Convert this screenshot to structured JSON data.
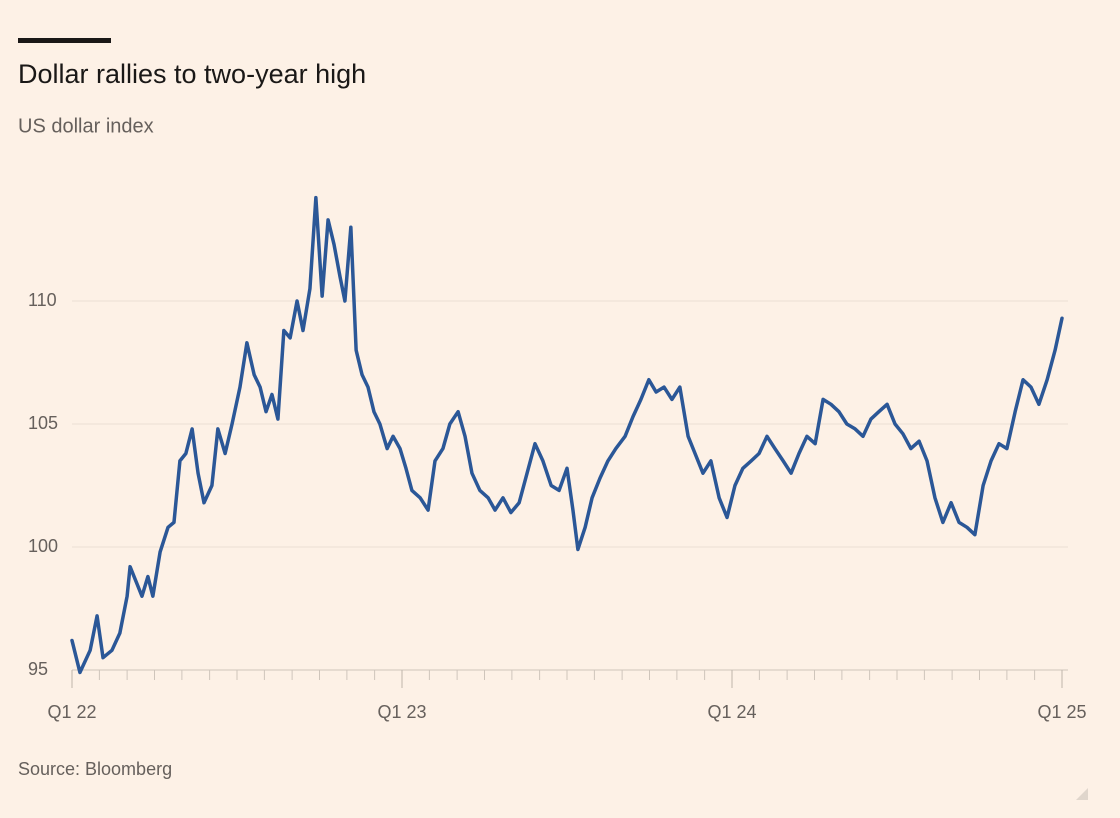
{
  "chart_data": {
    "type": "line",
    "title": "Dollar rallies to two-year high",
    "subtitle": "US dollar index",
    "source": "Source: Bloomberg",
    "xlim": [
      2022,
      2025
    ],
    "xticks": [
      {
        "value": 2022,
        "label": "Q1 22"
      },
      {
        "value": 2023,
        "label": "Q1 23"
      },
      {
        "value": 2024,
        "label": "Q1 24"
      },
      {
        "value": 2025,
        "label": "Q1 25"
      }
    ],
    "xminor_ticks": [
      2022.083,
      2022.167,
      2022.25,
      2022.333,
      2022.417,
      2022.5,
      2022.583,
      2022.667,
      2022.75,
      2022.833,
      2022.917,
      2023.083,
      2023.167,
      2023.25,
      2023.333,
      2023.417,
      2023.5,
      2023.583,
      2023.667,
      2023.75,
      2023.833,
      2023.917,
      2024.083,
      2024.167,
      2024.25,
      2024.333,
      2024.417,
      2024.5,
      2024.583,
      2024.667,
      2024.75,
      2024.833,
      2024.917
    ],
    "ylim": [
      95,
      115
    ],
    "yticks": [
      95,
      100,
      105,
      110
    ],
    "grid": true,
    "x": [
      2022.0,
      2022.024,
      2022.055,
      2022.076,
      2022.094,
      2022.121,
      2022.145,
      2022.167,
      2022.176,
      2022.197,
      2022.212,
      2022.23,
      2022.245,
      2022.267,
      2022.291,
      2022.309,
      2022.327,
      2022.345,
      2022.364,
      2022.382,
      2022.4,
      2022.424,
      2022.442,
      2022.464,
      2022.485,
      2022.509,
      2022.53,
      2022.552,
      2022.57,
      2022.588,
      2022.606,
      2022.624,
      2022.642,
      2022.661,
      2022.682,
      2022.7,
      2022.721,
      2022.739,
      2022.758,
      2022.776,
      2022.794,
      2022.812,
      2022.827,
      2022.845,
      2022.861,
      2022.879,
      2022.897,
      2022.915,
      2022.933,
      2022.955,
      2022.973,
      2022.994,
      2023.012,
      2023.03,
      2023.055,
      2023.079,
      2023.1,
      2023.124,
      2023.145,
      2023.17,
      2023.191,
      2023.212,
      2023.236,
      2023.261,
      2023.282,
      2023.306,
      2023.33,
      2023.355,
      2023.379,
      2023.403,
      2023.427,
      2023.452,
      2023.476,
      2023.5,
      2023.518,
      2023.533,
      2023.555,
      2023.576,
      2023.6,
      2023.624,
      2023.648,
      2023.676,
      2023.7,
      2023.724,
      2023.748,
      2023.77,
      2023.794,
      2023.818,
      2023.842,
      2023.867,
      2023.888,
      2023.912,
      2023.936,
      2023.961,
      2023.985,
      2024.009,
      2024.033,
      2024.058,
      2024.082,
      2024.106,
      2024.13,
      2024.155,
      2024.179,
      2024.203,
      2024.227,
      2024.252,
      2024.276,
      2024.3,
      2024.324,
      2024.348,
      2024.373,
      2024.397,
      2024.421,
      2024.445,
      2024.47,
      2024.494,
      2024.518,
      2024.542,
      2024.567,
      2024.591,
      2024.615,
      2024.639,
      2024.664,
      2024.688,
      2024.712,
      2024.736,
      2024.761,
      2024.785,
      2024.809,
      2024.833,
      2024.858,
      2024.882,
      2024.906,
      2024.93,
      2024.955,
      2024.979,
      2025.0
    ],
    "series": [
      {
        "name": "US dollar index",
        "color": "#2b5797",
        "values": [
          96.2,
          94.9,
          95.8,
          97.2,
          95.5,
          95.8,
          96.5,
          98.0,
          99.2,
          98.5,
          98.0,
          98.8,
          98.0,
          99.8,
          100.8,
          101.0,
          103.5,
          103.8,
          104.8,
          103.0,
          101.8,
          102.5,
          104.8,
          103.8,
          105.0,
          106.5,
          108.3,
          107.0,
          106.5,
          105.5,
          106.2,
          105.2,
          108.8,
          108.5,
          110.0,
          108.8,
          110.5,
          114.2,
          110.2,
          113.3,
          112.3,
          111.0,
          110.0,
          113.0,
          108.0,
          107.0,
          106.5,
          105.5,
          105.0,
          104.0,
          104.5,
          104.0,
          103.2,
          102.3,
          102.0,
          101.5,
          103.5,
          104.0,
          105.0,
          105.5,
          104.5,
          103.0,
          102.3,
          102.0,
          101.5,
          102.0,
          101.4,
          101.8,
          103.0,
          104.2,
          103.5,
          102.5,
          102.3,
          103.2,
          101.5,
          99.9,
          100.8,
          102.0,
          102.8,
          103.5,
          104.0,
          104.5,
          105.3,
          106.0,
          106.8,
          106.3,
          106.5,
          106.0,
          106.5,
          104.5,
          103.8,
          103.0,
          103.5,
          102.0,
          101.2,
          102.5,
          103.2,
          103.5,
          103.8,
          104.5,
          104.0,
          103.5,
          103.0,
          103.8,
          104.5,
          104.2,
          106.0,
          105.8,
          105.5,
          105.0,
          104.8,
          104.5,
          105.2,
          105.5,
          105.8,
          105.0,
          104.6,
          104.0,
          104.3,
          103.5,
          102.0,
          101.0,
          101.8,
          101.0,
          100.8,
          100.5,
          102.5,
          103.5,
          104.2,
          104.0,
          105.5,
          106.8,
          106.5,
          105.8,
          106.8,
          108.0,
          109.3
        ]
      }
    ]
  }
}
